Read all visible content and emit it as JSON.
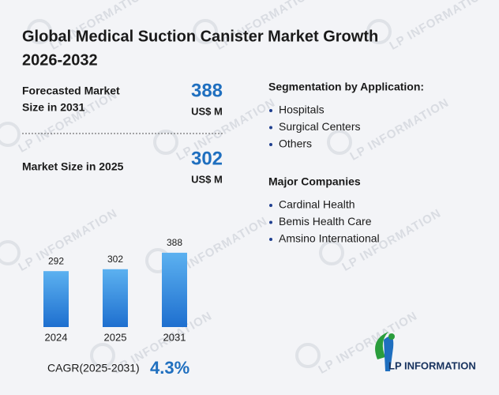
{
  "title_line1": "Global Medical Suction Canister Market Growth",
  "title_line2": "2026-2032",
  "watermark": "LP INFORMATION",
  "stats": [
    {
      "label_line1": "Forecasted Market",
      "label_line2": "Size in 2031",
      "value": "388",
      "unit": "US$ M"
    },
    {
      "label_line1": "Market Size in 2025",
      "value": "302",
      "unit": "US$ M"
    }
  ],
  "segmentation": {
    "title": "Segmentation by Application:",
    "items": [
      "Hospitals",
      "Surgical Centers",
      "Others"
    ]
  },
  "companies": {
    "title": "Major Companies",
    "items": [
      "Cardinal Health",
      "Bemis Health Care",
      "Amsino International"
    ]
  },
  "chart_data": {
    "type": "bar",
    "categories": [
      "2024",
      "2025",
      "2031"
    ],
    "values": [
      292,
      302,
      388
    ],
    "ylim": [
      0,
      400
    ],
    "color": "#2f86da"
  },
  "cagr": {
    "label": "CAGR(2025-2031)",
    "value": "4.3%"
  },
  "logo": {
    "text": "LP INFORMATION"
  }
}
